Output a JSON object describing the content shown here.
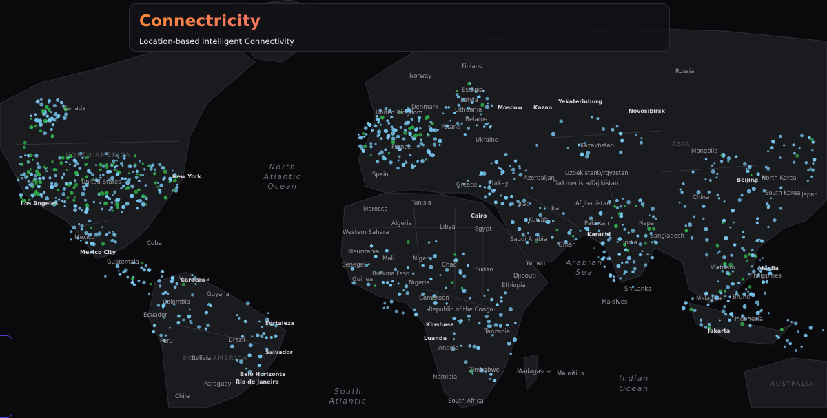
{
  "header": {
    "title": "Connectricity",
    "subtitle": "Location-based Intelligent Connectivity"
  },
  "colors": {
    "background": "#0a0a0c",
    "land": "#1a1b1f",
    "borders": "#2f3036",
    "dot_blue": "#79c8f2",
    "dot_green": "#2fb14a",
    "title_gradient_start": "#ff8a3c",
    "title_gradient_end": "#e33ad8"
  },
  "map": {
    "oceans": [
      {
        "lines": [
          "North",
          "Atlantic",
          "Ocean"
        ]
      },
      {
        "lines": [
          "Arabian",
          "Sea"
        ]
      },
      {
        "lines": [
          "Indian",
          "Ocean"
        ]
      },
      {
        "lines": [
          "South",
          "Atlantic"
        ]
      }
    ],
    "continents": [
      "NORTH AMERICA",
      "SOUTH AMERICA",
      "ASIA",
      "AUSTRALIA"
    ],
    "countries": [
      "Canada",
      "United States",
      "Mexico",
      "Cuba",
      "Guatemala",
      "Venezuela",
      "Guyana",
      "Colombia",
      "Ecuador",
      "Peru",
      "Brazil",
      "Bolivia",
      "Paraguay",
      "Chile",
      "Norway",
      "Finland",
      "Estonia",
      "Latvia",
      "Lithuania",
      "Denmark",
      "United Kingdom",
      "Poland",
      "Belarus",
      "Ukraine",
      "France",
      "Spain",
      "Greece",
      "Turkey",
      "Azerbaijan",
      "Russia",
      "Kazakhstan",
      "Uzbekistan",
      "Kyrgyzstan",
      "Turkmenistan",
      "Tajikistan",
      "Afghanistan",
      "Pakistan",
      "Iran",
      "Iraq",
      "Kuwait",
      "Saudi Arabia",
      "Oman",
      "Yemen",
      "Egypt",
      "Libya",
      "Tunisia",
      "Morocco",
      "Algeria",
      "Western Sahara",
      "Mauritania",
      "Mali",
      "Niger",
      "Chad",
      "Sudan",
      "Ethiopia",
      "Djibouti",
      "Nigeria",
      "Cameroon",
      "Senegal",
      "Guinea",
      "Burkina Faso",
      "Republic of the Congo",
      "Angola",
      "Namibia",
      "Zimbabwe",
      "Tanzania",
      "Madagascar",
      "Mauritius",
      "South Africa",
      "Mongolia",
      "China",
      "North Korea",
      "South Korea",
      "Japan",
      "Nepal",
      "Bangladesh",
      "India",
      "Sri Lanka",
      "Maldives",
      "Vietnam",
      "Philippines",
      "Brunei",
      "Malaysia",
      "Indonesia"
    ],
    "cities": [
      "Los Angeles",
      "Mexico City",
      "Fortaleza",
      "Salvador",
      "Belo Horizonte",
      "Rio de Janeiro",
      "Moscow",
      "Kazan",
      "Yekaterinburg",
      "Novosibirsk",
      "Cairo",
      "Karachi",
      "Beijing",
      "Jakarta",
      "Kinshasa",
      "Luanda",
      "New York",
      "Caracas",
      "Manila"
    ]
  }
}
